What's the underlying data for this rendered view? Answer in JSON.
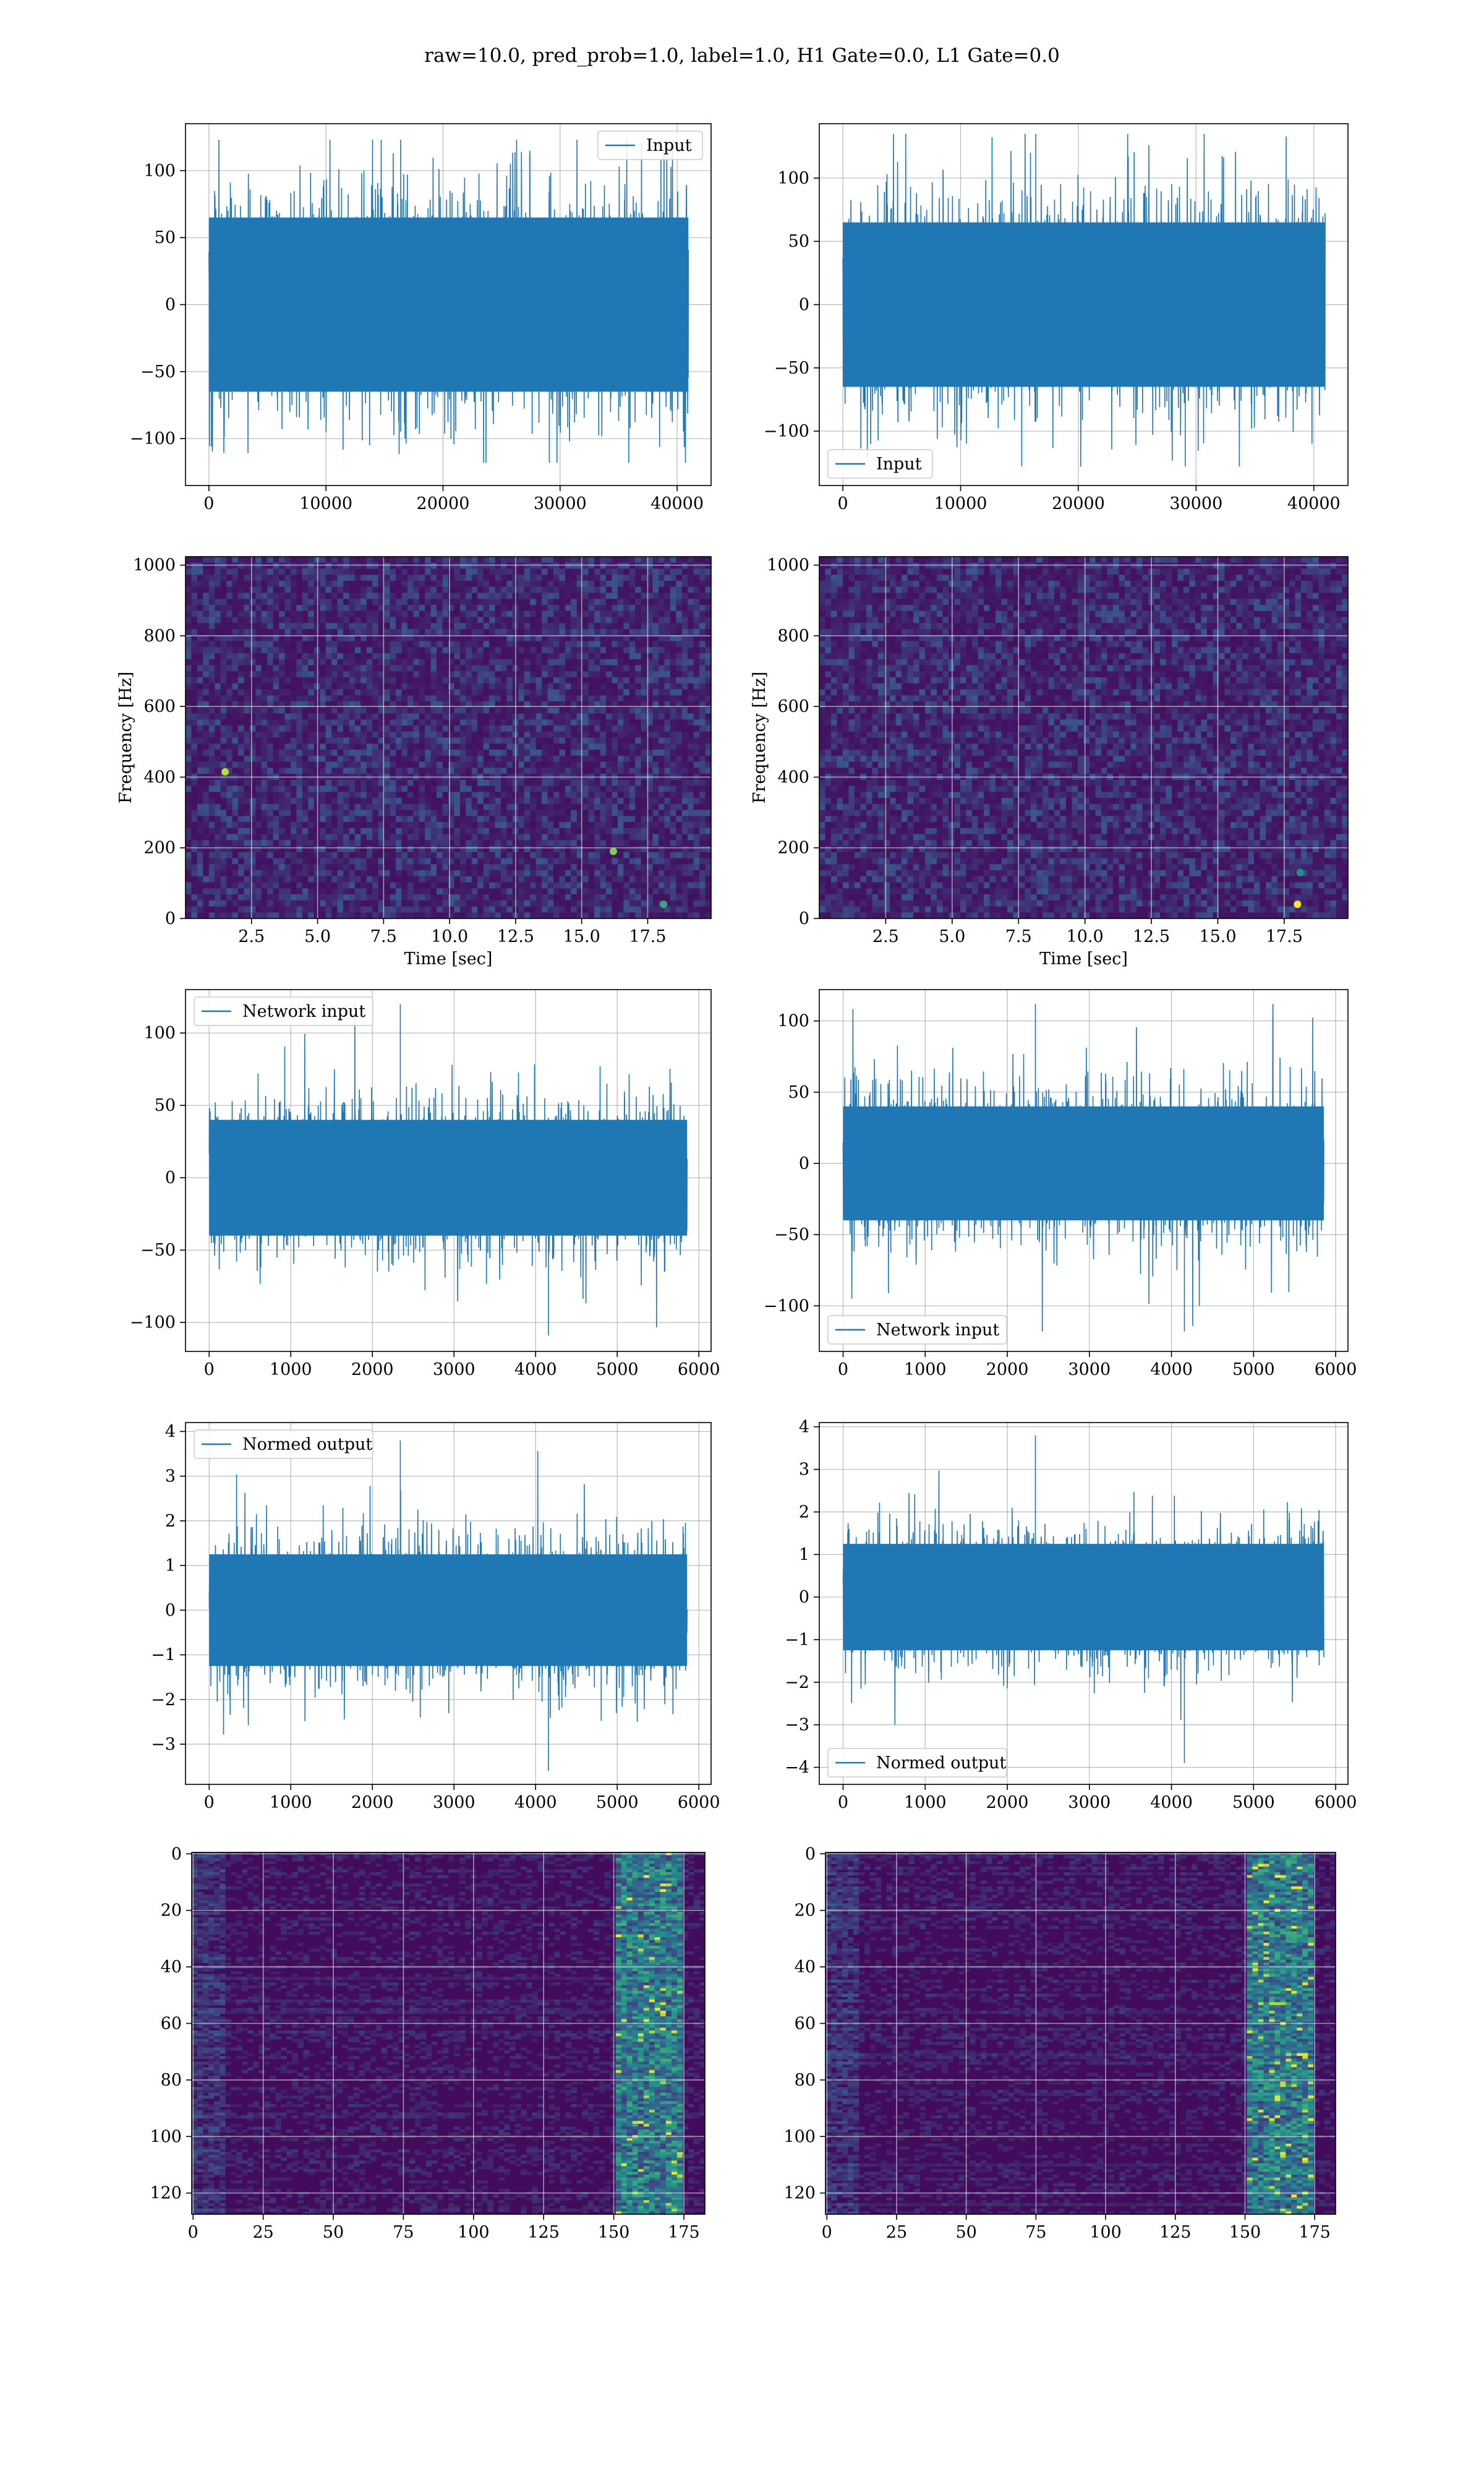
{
  "figure": {
    "suptitle": "raw=10.0, pred_prob=1.0, label=1.0, H1 Gate=0.0, L1 Gate=0.0",
    "colors": {
      "line": "#1f77b4",
      "grid": "#b0b0b0",
      "viridis_low": "#440154",
      "viridis_mid": "#21918c",
      "viridis_high": "#fde725"
    }
  },
  "chart_data": [
    {
      "type": "line",
      "panel": "raw-input-h1",
      "legend": [
        "Input"
      ],
      "legend_position": "top-right",
      "xlim": [
        -2000,
        42900
      ],
      "ylim": [
        -135,
        135
      ],
      "xticks": [
        0,
        10000,
        20000,
        30000,
        40000
      ],
      "xtick_labels": [
        "0",
        "10000",
        "20000",
        "30000",
        "40000"
      ],
      "yticks": [
        -100,
        -50,
        0,
        50,
        100
      ],
      "ytick_labels": [
        "−100",
        "−50",
        "0",
        "50",
        "100"
      ],
      "x_range": [
        0,
        40960
      ],
      "envelope": [
        -65,
        65
      ],
      "extremes": [
        -118,
        123
      ],
      "grid": true,
      "xlabel": "",
      "ylabel": ""
    },
    {
      "type": "line",
      "panel": "raw-input-l1",
      "legend": [
        "Input"
      ],
      "legend_position": "bottom-left",
      "xlim": [
        -2000,
        42900
      ],
      "ylim": [
        -143,
        143
      ],
      "xticks": [
        0,
        10000,
        20000,
        30000,
        40000
      ],
      "xtick_labels": [
        "0",
        "10000",
        "20000",
        "30000",
        "40000"
      ],
      "yticks": [
        -100,
        -50,
        0,
        50,
        100
      ],
      "ytick_labels": [
        "−100",
        "−50",
        "0",
        "50",
        "100"
      ],
      "x_range": [
        0,
        40960
      ],
      "envelope": [
        -65,
        65
      ],
      "extremes": [
        -128,
        135
      ],
      "grid": true,
      "xlabel": "",
      "ylabel": ""
    },
    {
      "type": "heatmap",
      "panel": "spectrogram-h1",
      "xlabel": "Time [sec]",
      "ylabel": "Frequency [Hz]",
      "xlim": [
        0,
        19.9
      ],
      "ylim": [
        0,
        1024
      ],
      "xticks": [
        2.5,
        5.0,
        7.5,
        10.0,
        12.5,
        15.0,
        17.5
      ],
      "xtick_labels": [
        "2.5",
        "5.0",
        "7.5",
        "10.0",
        "12.5",
        "15.0",
        "17.5"
      ],
      "yticks": [
        0,
        200,
        400,
        600,
        800,
        1000
      ],
      "ytick_labels": [
        "0",
        "200",
        "400",
        "600",
        "800",
        "1000"
      ],
      "colormap": "viridis",
      "grid": true,
      "hot_spots": [
        {
          "t": 1.5,
          "f": 415,
          "level": 0.9
        },
        {
          "t": 16.2,
          "f": 190,
          "level": 0.8
        },
        {
          "t": 18.1,
          "f": 40,
          "level": 0.6
        }
      ]
    },
    {
      "type": "heatmap",
      "panel": "spectrogram-l1",
      "xlabel": "Time [sec]",
      "ylabel": "Frequency [Hz]",
      "xlim": [
        0,
        19.9
      ],
      "ylim": [
        0,
        1024
      ],
      "xticks": [
        2.5,
        5.0,
        7.5,
        10.0,
        12.5,
        15.0,
        17.5
      ],
      "xtick_labels": [
        "2.5",
        "5.0",
        "7.5",
        "10.0",
        "12.5",
        "15.0",
        "17.5"
      ],
      "yticks": [
        0,
        200,
        400,
        600,
        800,
        1000
      ],
      "ytick_labels": [
        "0",
        "200",
        "400",
        "600",
        "800",
        "1000"
      ],
      "colormap": "viridis",
      "grid": true,
      "hot_spots": [
        {
          "t": 18.0,
          "f": 40,
          "level": 1.0
        },
        {
          "t": 18.1,
          "f": 130,
          "level": 0.5
        }
      ]
    },
    {
      "type": "line",
      "panel": "network-input-h1",
      "legend": [
        "Network input"
      ],
      "legend_position": "top-left",
      "xlim": [
        -290,
        6150
      ],
      "ylim": [
        -120,
        130
      ],
      "xticks": [
        0,
        1000,
        2000,
        3000,
        4000,
        5000,
        6000
      ],
      "xtick_labels": [
        "0",
        "1000",
        "2000",
        "3000",
        "4000",
        "5000",
        "6000"
      ],
      "yticks": [
        -100,
        -50,
        0,
        50,
        100
      ],
      "ytick_labels": [
        "−100",
        "−50",
        "0",
        "50",
        "100"
      ],
      "x_range": [
        0,
        5856
      ],
      "envelope": [
        -40,
        40
      ],
      "extremes": [
        -109,
        120
      ],
      "grid": true,
      "xlabel": "",
      "ylabel": ""
    },
    {
      "type": "line",
      "panel": "network-input-l1",
      "legend": [
        "Network input"
      ],
      "legend_position": "bottom-left",
      "xlim": [
        -290,
        6150
      ],
      "ylim": [
        -132,
        122
      ],
      "xticks": [
        0,
        1000,
        2000,
        3000,
        4000,
        5000,
        6000
      ],
      "xtick_labels": [
        "0",
        "1000",
        "2000",
        "3000",
        "4000",
        "5000",
        "6000"
      ],
      "yticks": [
        -100,
        -50,
        0,
        50,
        100
      ],
      "ytick_labels": [
        "−100",
        "−50",
        "0",
        "50",
        "100"
      ],
      "x_range": [
        0,
        5856
      ],
      "envelope": [
        -40,
        40
      ],
      "extremes": [
        -118,
        112
      ],
      "grid": true,
      "xlabel": "",
      "ylabel": ""
    },
    {
      "type": "line",
      "panel": "normed-output-h1",
      "legend": [
        "Normed output"
      ],
      "legend_position": "top-left",
      "xlim": [
        -290,
        6150
      ],
      "ylim": [
        -3.9,
        4.2
      ],
      "xticks": [
        0,
        1000,
        2000,
        3000,
        4000,
        5000,
        6000
      ],
      "xtick_labels": [
        "0",
        "1000",
        "2000",
        "3000",
        "4000",
        "5000",
        "6000"
      ],
      "yticks": [
        -3,
        -2,
        -1,
        0,
        1,
        2,
        3,
        4
      ],
      "ytick_labels": [
        "−3",
        "−2",
        "−1",
        "0",
        "1",
        "2",
        "3",
        "4"
      ],
      "x_range": [
        0,
        5856
      ],
      "envelope": [
        -1.25,
        1.25
      ],
      "extremes": [
        -3.6,
        3.8
      ],
      "grid": true,
      "xlabel": "",
      "ylabel": ""
    },
    {
      "type": "line",
      "panel": "normed-output-l1",
      "legend": [
        "Normed output"
      ],
      "legend_position": "bottom-left",
      "xlim": [
        -290,
        6150
      ],
      "ylim": [
        -4.4,
        4.1
      ],
      "xticks": [
        0,
        1000,
        2000,
        3000,
        4000,
        5000,
        6000
      ],
      "xtick_labels": [
        "0",
        "1000",
        "2000",
        "3000",
        "4000",
        "5000",
        "6000"
      ],
      "yticks": [
        -4,
        -3,
        -2,
        -1,
        0,
        1,
        2,
        3,
        4
      ],
      "ytick_labels": [
        "−4",
        "−3",
        "−2",
        "−1",
        "0",
        "1",
        "2",
        "3",
        "4"
      ],
      "x_range": [
        0,
        5856
      ],
      "envelope": [
        -1.25,
        1.25
      ],
      "extremes": [
        -3.9,
        3.8
      ],
      "grid": true,
      "xlabel": "",
      "ylabel": ""
    },
    {
      "type": "heatmap",
      "panel": "feature-map-h1",
      "xlim": [
        -0.5,
        182.5
      ],
      "ylim": [
        127.5,
        -0.5
      ],
      "xticks": [
        0,
        25,
        50,
        75,
        100,
        125,
        150,
        175
      ],
      "xtick_labels": [
        "0",
        "25",
        "50",
        "75",
        "100",
        "125",
        "150",
        "175"
      ],
      "yticks": [
        0,
        20,
        40,
        60,
        80,
        100,
        120
      ],
      "ytick_labels": [
        "0",
        "20",
        "40",
        "60",
        "80",
        "100",
        "120"
      ],
      "colormap": "viridis",
      "grid": true,
      "active_columns": [
        150,
        175
      ],
      "xlabel": "",
      "ylabel": ""
    },
    {
      "type": "heatmap",
      "panel": "feature-map-l1",
      "xlim": [
        -0.5,
        182.5
      ],
      "ylim": [
        127.5,
        -0.5
      ],
      "xticks": [
        0,
        25,
        50,
        75,
        100,
        125,
        150,
        175
      ],
      "xtick_labels": [
        "0",
        "25",
        "50",
        "75",
        "100",
        "125",
        "150",
        "175"
      ],
      "yticks": [
        0,
        20,
        40,
        60,
        80,
        100,
        120
      ],
      "ytick_labels": [
        "0",
        "20",
        "40",
        "60",
        "80",
        "100",
        "120"
      ],
      "colormap": "viridis",
      "grid": true,
      "active_columns": [
        150,
        175
      ],
      "xlabel": "",
      "ylabel": ""
    }
  ]
}
